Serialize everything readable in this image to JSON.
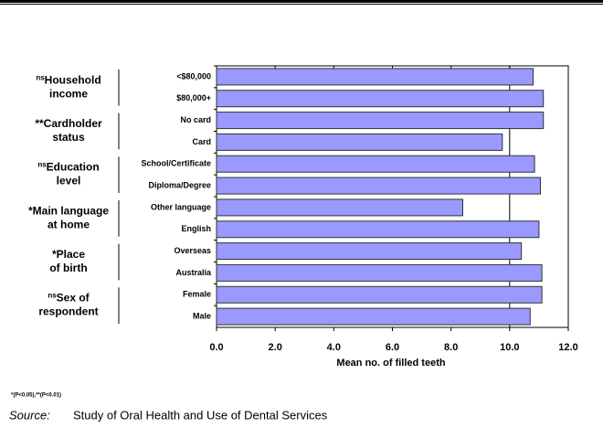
{
  "chart_data": {
    "type": "bar",
    "orientation": "horizontal",
    "categories": [
      "<$80,000",
      "$80,000+",
      "No card",
      "Card",
      "School/Certificate",
      "Diploma/Degree",
      "Other language",
      "English",
      "Overseas",
      "Australia",
      "Female",
      "Male"
    ],
    "values": [
      10.8,
      11.15,
      11.15,
      9.75,
      10.85,
      11.05,
      8.4,
      11.0,
      10.4,
      11.1,
      11.1,
      10.7
    ],
    "color": "#9999ff",
    "groups": [
      {
        "prefix": "ns",
        "lines": [
          "Household",
          "income"
        ]
      },
      {
        "prefix": "**",
        "lines": [
          "Cardholder",
          "status"
        ]
      },
      {
        "prefix": "ns",
        "lines": [
          "Education",
          "level"
        ]
      },
      {
        "prefix": "*",
        "lines": [
          "Main language",
          "at home"
        ]
      },
      {
        "prefix": "*",
        "lines": [
          "Place",
          "of birth"
        ]
      },
      {
        "prefix": "ns",
        "lines": [
          "Sex of",
          "respondent"
        ]
      }
    ],
    "xlabel": "Mean no. of filled teeth",
    "xlim": [
      0,
      12
    ],
    "xticks": [
      {
        "value": 0,
        "label": "0.0"
      },
      {
        "value": 2,
        "label": "2.0"
      },
      {
        "value": 4,
        "label": "4.0"
      },
      {
        "value": 6,
        "label": "6.0"
      },
      {
        "value": 8,
        "label": "8.0"
      },
      {
        "value": 10,
        "label": "10.0"
      },
      {
        "value": 12,
        "label": "12.0"
      }
    ],
    "reference_line": 10,
    "footnote": "*(P<0.05),**(P<0.01)",
    "source_label": "Source:",
    "source": "Study of Oral Health and Use of Dental Services"
  }
}
